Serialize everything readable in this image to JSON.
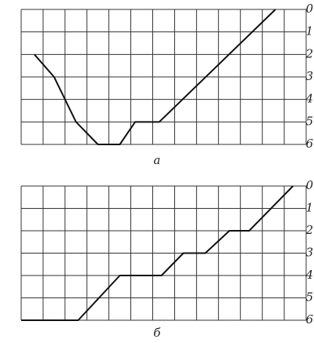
{
  "chart_data": [
    {
      "type": "line",
      "title": "а",
      "x": [
        0.6,
        1.5,
        2.5,
        3.5,
        4.5,
        5.2,
        6.3,
        11.6
      ],
      "values": [
        2,
        3,
        5,
        6,
        6,
        5,
        5,
        0
      ],
      "color": "#111111",
      "xlim": [
        0,
        13
      ],
      "xticks": [
        0,
        1,
        2,
        3,
        4,
        5,
        6,
        7,
        8,
        9,
        10,
        11,
        12,
        13
      ],
      "ylim": [
        6,
        0
      ],
      "yticks": [
        0,
        1,
        2,
        3,
        4,
        5,
        6
      ],
      "grid": true
    },
    {
      "type": "line",
      "title": "б",
      "x": [
        0,
        2.6,
        4.5,
        6.4,
        7.4,
        8.4,
        9.5,
        10.4,
        12.4
      ],
      "values": [
        6,
        6,
        4,
        4,
        3,
        3,
        2,
        2,
        0
      ],
      "color": "#111111",
      "xlim": [
        0,
        13
      ],
      "xticks": [
        0,
        1,
        2,
        3,
        4,
        5,
        6,
        7,
        8,
        9,
        10,
        11,
        12,
        13
      ],
      "ylim": [
        6,
        0
      ],
      "yticks": [
        0,
        1,
        2,
        3,
        4,
        5,
        6
      ],
      "grid": true
    }
  ]
}
